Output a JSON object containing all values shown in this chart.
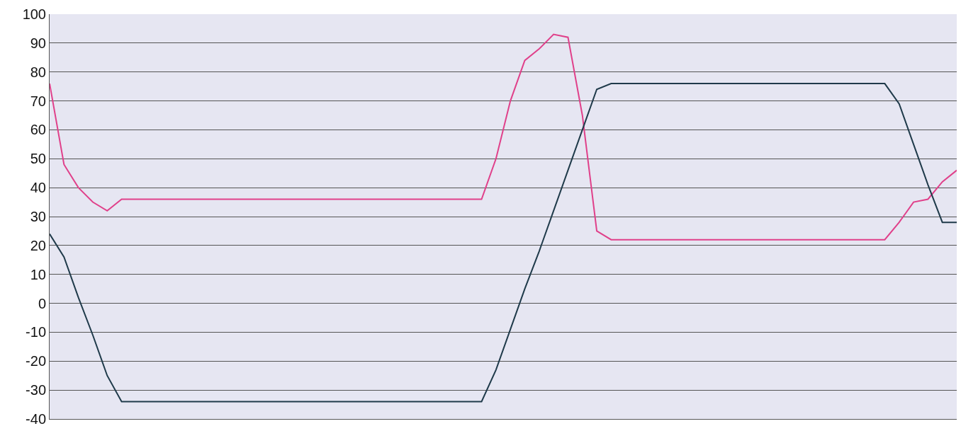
{
  "chart_data": {
    "type": "line",
    "categories": [
      null,
      null,
      null,
      null,
      null,
      null,
      null,
      null,
      null,
      null,
      null,
      null,
      null,
      null,
      null,
      null,
      null,
      null,
      null,
      null,
      null,
      null,
      null,
      null,
      null,
      null,
      null,
      null,
      null,
      null,
      null,
      null,
      null,
      null,
      null,
      null,
      null,
      null,
      null,
      null,
      null,
      null,
      null,
      null,
      null,
      null,
      null,
      null,
      null,
      null,
      null,
      null,
      null,
      null,
      null,
      null,
      null,
      null,
      null,
      null,
      null,
      null,
      null,
      null
    ],
    "series": [
      {
        "color": "#e0408a",
        "values": [
          76,
          48,
          40,
          35,
          32,
          36,
          36,
          36,
          36,
          36,
          36,
          36,
          36,
          36,
          36,
          36,
          36,
          36,
          36,
          36,
          36,
          36,
          36,
          36,
          36,
          36,
          36,
          36,
          36,
          36,
          36,
          50,
          70,
          84,
          88,
          93,
          92,
          65,
          25,
          22,
          22,
          22,
          22,
          22,
          22,
          22,
          22,
          22,
          22,
          22,
          22,
          22,
          22,
          22,
          22,
          22,
          22,
          22,
          22,
          28,
          35,
          36,
          42,
          46
        ]
      },
      {
        "color": "#1f3a4a",
        "values": [
          24,
          16,
          2,
          -11,
          -25,
          -34,
          -34,
          -34,
          -34,
          -34,
          -34,
          -34,
          -34,
          -34,
          -34,
          -34,
          -34,
          -34,
          -34,
          -34,
          -34,
          -34,
          -34,
          -34,
          -34,
          -34,
          -34,
          -34,
          -34,
          -34,
          -34,
          -23,
          -9,
          5,
          18,
          32,
          46,
          60,
          74,
          76,
          76,
          76,
          76,
          76,
          76,
          76,
          76,
          76,
          76,
          76,
          76,
          76,
          76,
          76,
          76,
          76,
          76,
          76,
          76,
          69,
          55,
          41,
          28,
          28
        ]
      }
    ],
    "ylim": [
      -40,
      100
    ],
    "yticks": [
      -40,
      -30,
      -20,
      -10,
      0,
      10,
      20,
      30,
      40,
      50,
      60,
      70,
      80,
      90,
      100
    ],
    "grid": "y",
    "marker": "none",
    "line_style": "solid"
  }
}
